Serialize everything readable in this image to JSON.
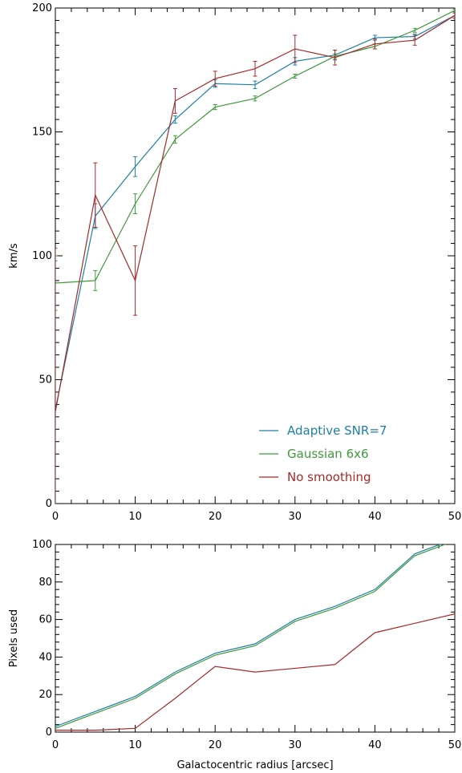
{
  "chart_data": [
    {
      "type": "line",
      "title": "",
      "xlabel": "",
      "ylabel": "km/s",
      "xlim": [
        0,
        50
      ],
      "ylim": [
        0,
        200
      ],
      "xticks": [
        0,
        10,
        20,
        30,
        40,
        50
      ],
      "yticks": [
        0,
        50,
        100,
        150,
        200
      ],
      "grid": false,
      "legend_position": "bottom-right",
      "x": [
        0,
        5,
        10,
        15,
        20,
        25,
        30,
        35,
        40,
        45,
        50
      ],
      "series": [
        {
          "name": "Adaptive SNR=7",
          "color": "#1f7fa6",
          "values": [
            38,
            116,
            136,
            155,
            169.5,
            169,
            178.5,
            181,
            188,
            188.5,
            197
          ],
          "errors": [
            60,
            5,
            4,
            1.5,
            1.5,
            1.5,
            1.5,
            2,
            1,
            1,
            1
          ]
        },
        {
          "name": "Gaussian 6x6",
          "color": "#3f9a3a",
          "values": [
            89,
            90,
            121,
            147,
            160,
            163.5,
            172.5,
            180.5,
            184.5,
            191,
            199
          ],
          "errors": [
            11,
            4,
            4,
            1.5,
            1,
            1,
            0.8,
            1,
            1,
            0.8,
            0.5
          ]
        },
        {
          "name": "No smoothing",
          "color": "#a52a2a",
          "values": [
            37,
            124.5,
            90,
            162.5,
            171.5,
            175.5,
            183.5,
            180,
            185.5,
            187,
            197
          ],
          "errors": [
            66,
            13,
            14,
            5,
            3,
            3,
            5.5,
            3,
            2,
            2,
            1
          ]
        }
      ]
    },
    {
      "type": "line",
      "title": "",
      "xlabel": "Galactocentric radius [arcsec]",
      "ylabel": "Pixels used",
      "xlim": [
        0,
        50
      ],
      "ylim": [
        0,
        100
      ],
      "xticks": [
        0,
        10,
        20,
        30,
        40,
        50
      ],
      "yticks": [
        0,
        20,
        40,
        60,
        80,
        100
      ],
      "grid": false,
      "x": [
        0,
        5,
        10,
        15,
        20,
        25,
        30,
        35,
        40,
        45,
        50
      ],
      "series": [
        {
          "name": "Adaptive SNR=7",
          "color": "#1f7fa6",
          "values": [
            3,
            11,
            19,
            32,
            42,
            47,
            60,
            67,
            76,
            95,
            103
          ]
        },
        {
          "name": "Gaussian 6x6",
          "color": "#3f9a3a",
          "values": [
            2,
            10,
            18,
            31,
            41,
            46,
            59,
            66,
            75,
            94,
            102
          ]
        },
        {
          "name": "No smoothing",
          "color": "#a52a2a",
          "values": [
            1,
            1,
            2,
            18,
            35,
            32,
            34,
            36,
            53,
            58,
            63
          ]
        }
      ]
    }
  ]
}
